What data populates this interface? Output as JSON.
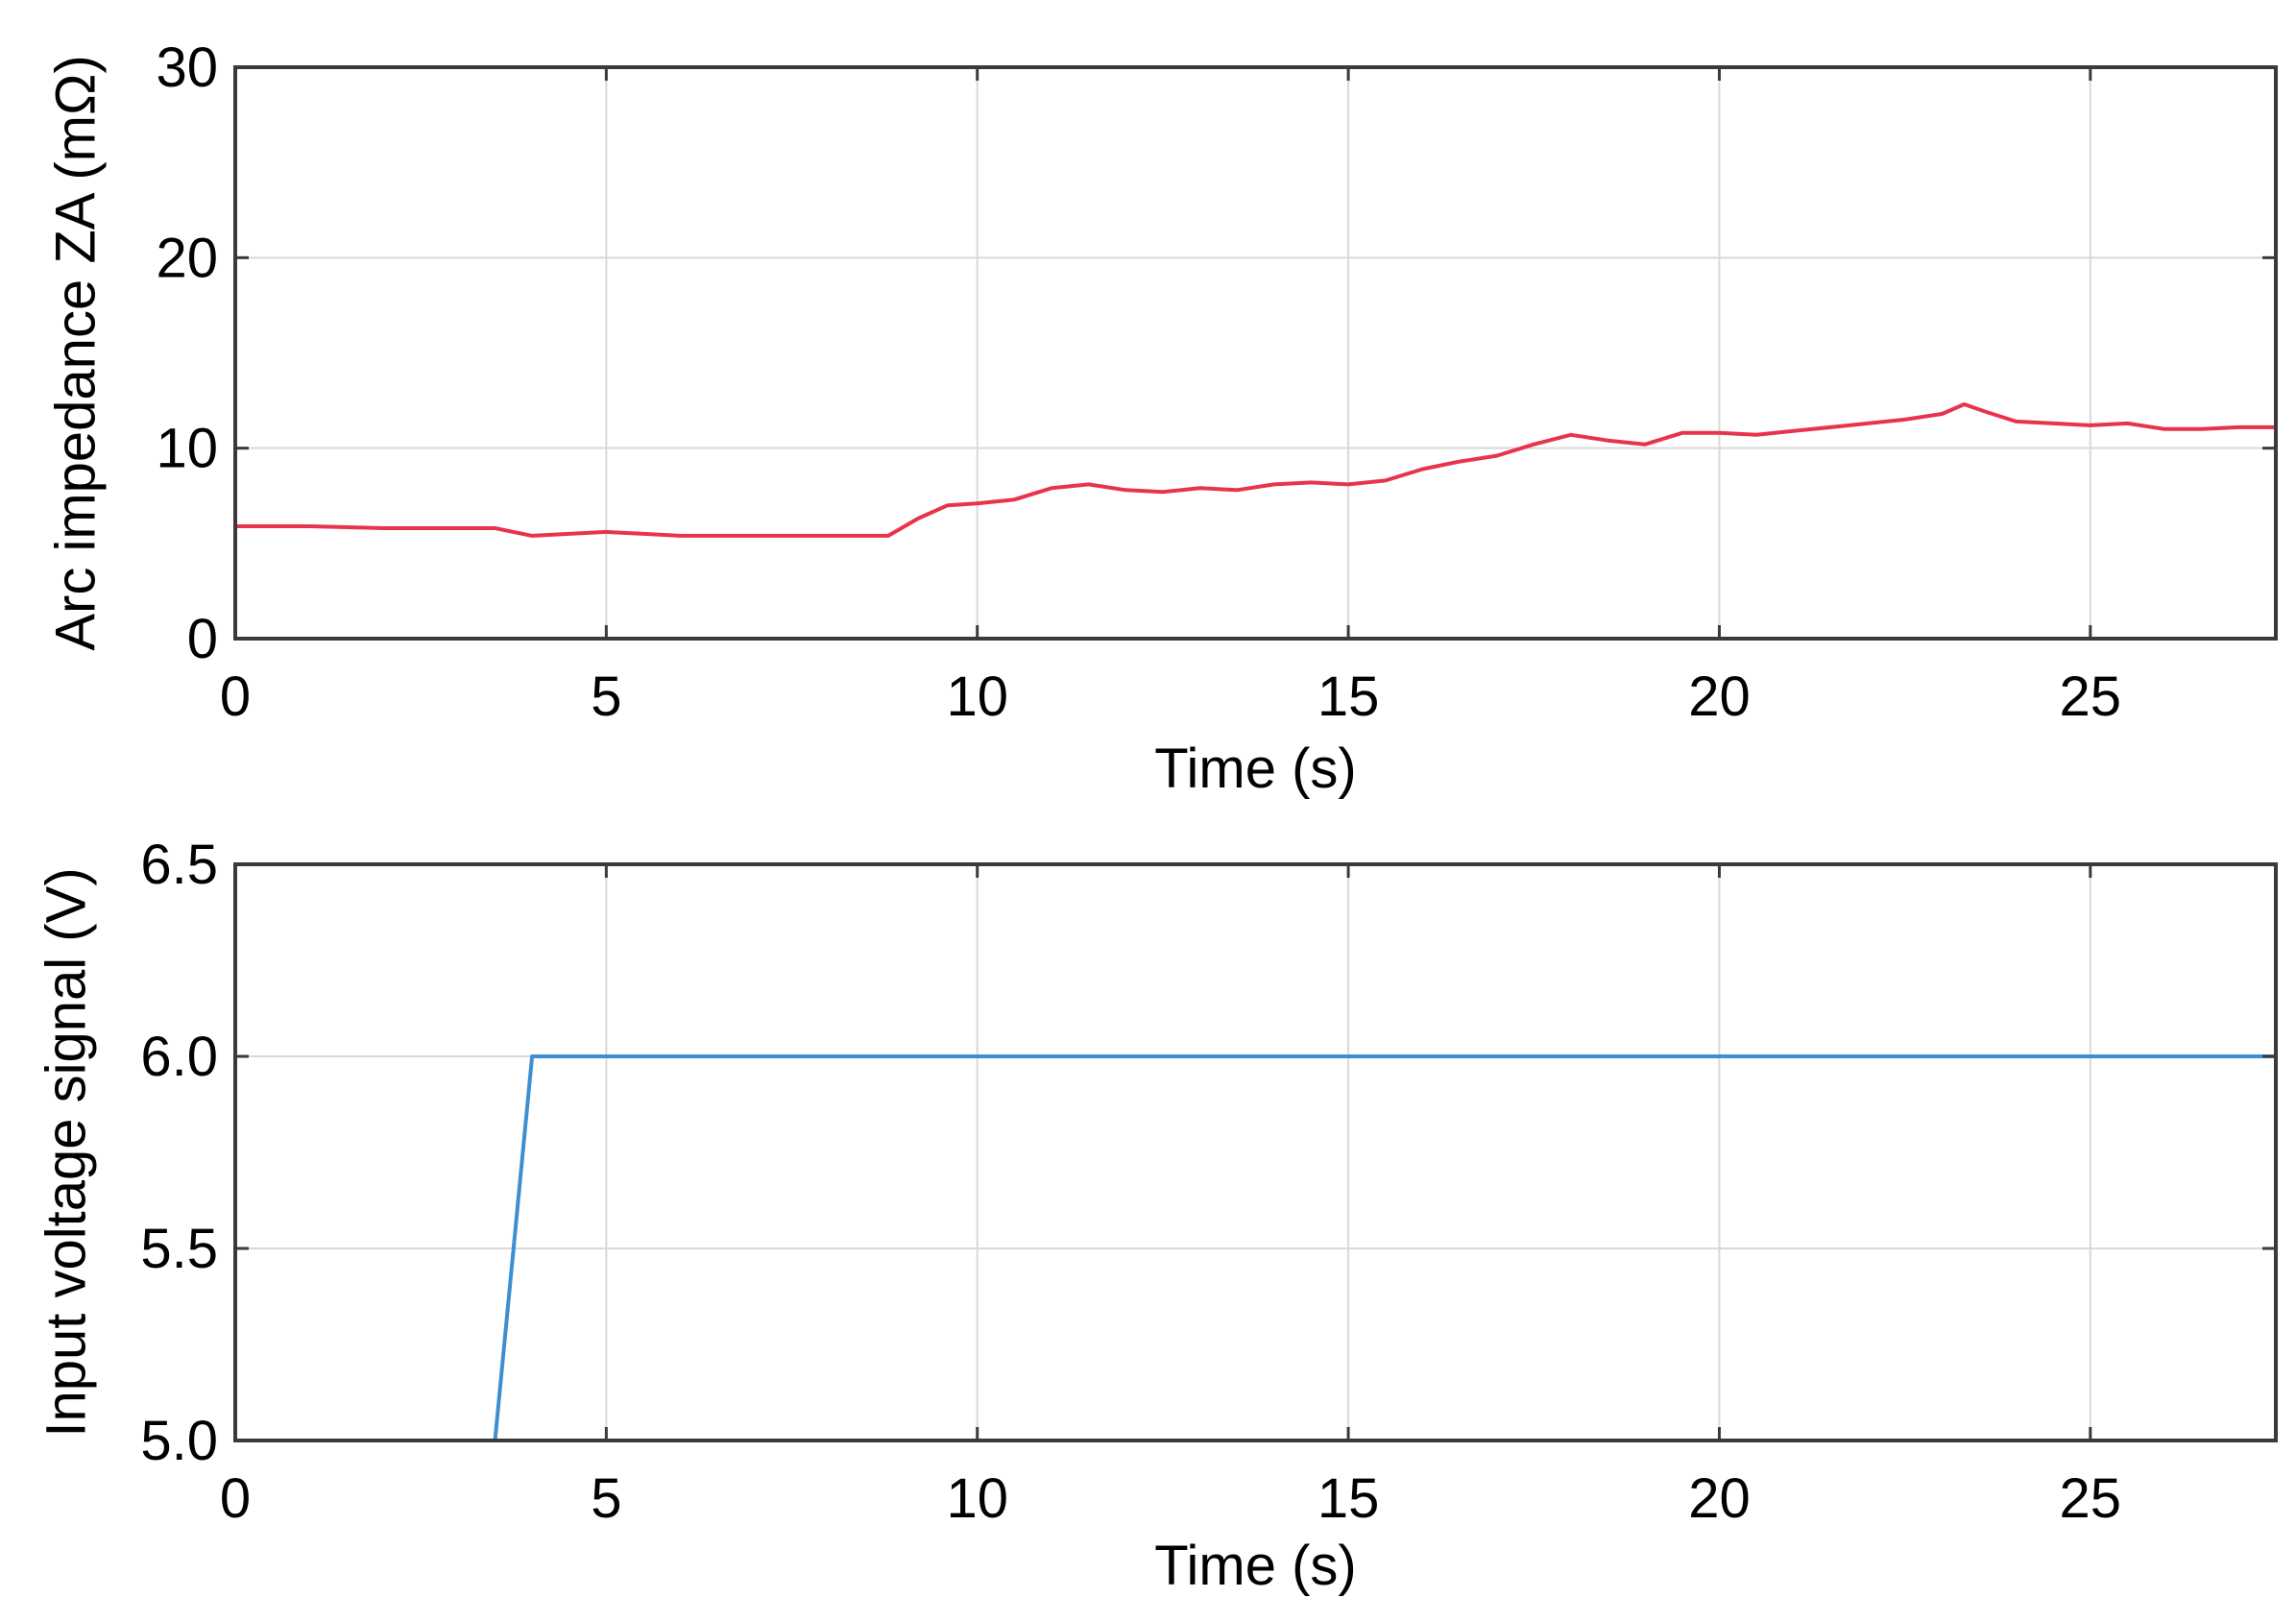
{
  "chart_data": [
    {
      "type": "line",
      "xlabel": "Time (s)",
      "ylabel": "Arc impedance ZA (mΩ)",
      "xlim": [
        0,
        27.5
      ],
      "ylim": [
        0,
        30
      ],
      "xticks": [
        0,
        5,
        10,
        15,
        20,
        25
      ],
      "yticks": [
        0,
        10,
        20,
        30
      ],
      "ytick_labels": [
        "0",
        "10",
        "20",
        "30"
      ],
      "grid": true,
      "color": "#e8344a",
      "series": [
        {
          "x": [
            0,
            1,
            2,
            3,
            3.5,
            4,
            4.5,
            5,
            5.5,
            6,
            7,
            8,
            8.8,
            9.2,
            9.6,
            10,
            10.5,
            11,
            11.5,
            12,
            12.5,
            13,
            13.5,
            14,
            14.5,
            15,
            15.5,
            16,
            16.5,
            17,
            17.5,
            18,
            18.5,
            19,
            19.5,
            20,
            20.5,
            21,
            21.5,
            22,
            22.5,
            23,
            23.3,
            23.6,
            24,
            24.5,
            25,
            25.5,
            26,
            26.5,
            27,
            27.5
          ],
          "y": [
            5.9,
            5.9,
            5.8,
            5.8,
            5.8,
            5.4,
            5.5,
            5.6,
            5.5,
            5.4,
            5.4,
            5.4,
            5.4,
            6.3,
            7.0,
            7.1,
            7.3,
            7.9,
            8.1,
            7.8,
            7.7,
            7.9,
            7.8,
            8.1,
            8.2,
            8.1,
            8.3,
            8.9,
            9.3,
            9.6,
            10.2,
            10.7,
            10.4,
            10.2,
            10.8,
            10.8,
            10.7,
            10.9,
            11.1,
            11.3,
            11.5,
            11.8,
            12.3,
            11.9,
            11.4,
            11.3,
            11.2,
            11.3,
            11.0,
            11.0,
            11.1,
            11.1
          ]
        }
      ]
    },
    {
      "type": "line",
      "xlabel": "Time (s)",
      "ylabel": "Input voltage signal (V)",
      "xlim": [
        0,
        27.5
      ],
      "ylim": [
        5.0,
        6.5
      ],
      "xticks": [
        0,
        5,
        10,
        15,
        20,
        25
      ],
      "yticks": [
        5.0,
        5.5,
        6.0,
        6.5
      ],
      "ytick_labels": [
        "5.0",
        "5.5",
        "6.0",
        "6.5"
      ],
      "grid": true,
      "color": "#3d8fd1",
      "series": [
        {
          "x": [
            0,
            3.5,
            4.0,
            27.5
          ],
          "y": [
            5.0,
            5.0,
            6.0,
            6.0
          ]
        }
      ]
    }
  ]
}
